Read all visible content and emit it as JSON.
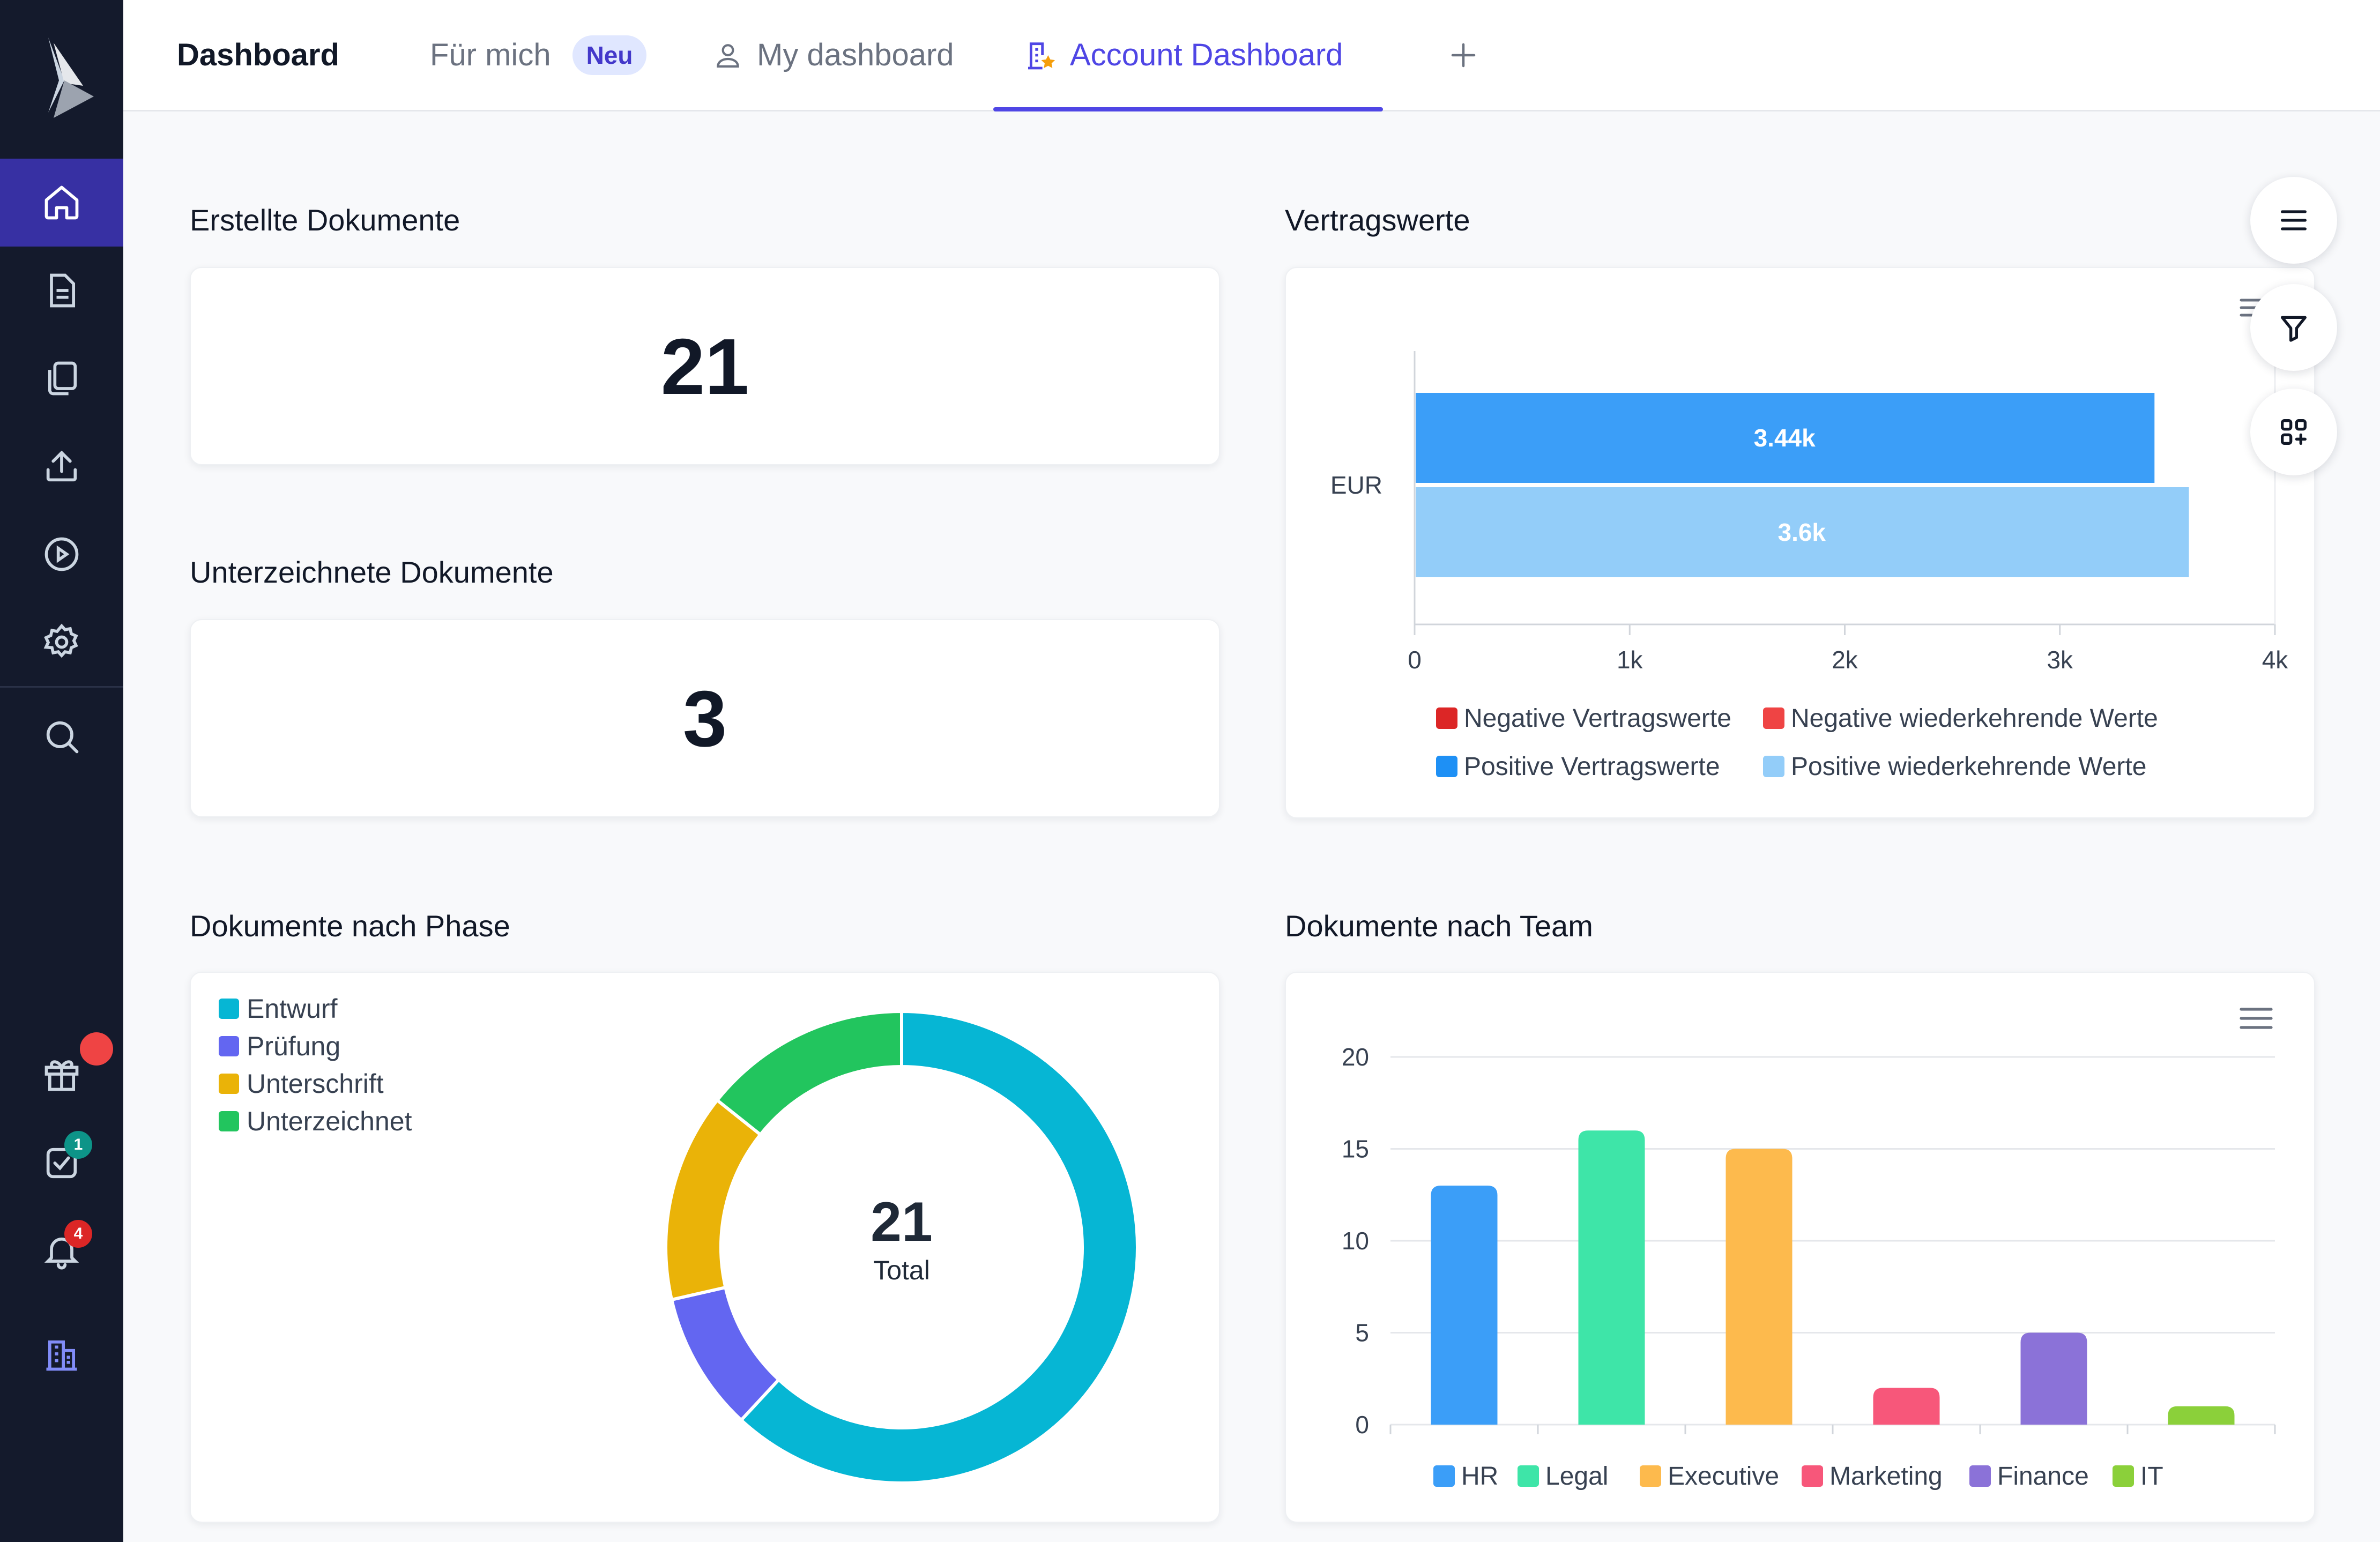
{
  "colors": {
    "accent": "#4f46e5",
    "sidebar_bg": "#141a2c",
    "sidebar_active": "#3730a3"
  },
  "sidebar": {
    "items": [
      {
        "icon": "home-icon",
        "active": true
      },
      {
        "icon": "document-icon"
      },
      {
        "icon": "documents-copy-icon"
      },
      {
        "icon": "upload-icon"
      },
      {
        "icon": "play-icon"
      },
      {
        "icon": "settings-icon"
      },
      {
        "icon": "search-icon"
      }
    ],
    "bottom_items": [
      {
        "icon": "gift-icon",
        "badge": ""
      },
      {
        "icon": "tasks-icon",
        "badge": "1"
      },
      {
        "icon": "bell-icon",
        "badge": "4"
      },
      {
        "icon": "building-icon"
      }
    ]
  },
  "header": {
    "title": "Dashboard",
    "tabs": [
      {
        "label": "Für mich",
        "badge": "Neu"
      },
      {
        "label": "My dashboard",
        "icon": "user-icon"
      },
      {
        "label": "Account Dashboard",
        "icon": "building-star-icon",
        "active": true
      }
    ],
    "add_icon": "plus-icon"
  },
  "widgets": {
    "created": {
      "title": "Erstellte Dokumente",
      "value": "21"
    },
    "signed": {
      "title": "Unterzeichnete Dokumente",
      "value": "3"
    },
    "contract_values": {
      "title": "Vertragswerte"
    },
    "by_phase": {
      "title": "Dokumente nach Phase"
    },
    "by_team": {
      "title": "Dokumente nach Team"
    }
  },
  "chart_data": [
    {
      "type": "bar",
      "orientation": "horizontal",
      "categories": [
        "EUR"
      ],
      "series": [
        {
          "name": "Positive Vertragswerte",
          "values": [
            3440
          ],
          "label": "3.44k",
          "color": "#3b9ef8"
        },
        {
          "name": "Positive wiederkehrende Werte",
          "values": [
            3600
          ],
          "label": "3.6k",
          "color": "#93cdf9"
        }
      ],
      "legend": [
        {
          "name": "Negative Vertragswerte",
          "color": "#dc2626"
        },
        {
          "name": "Negative wiederkehrende Werte",
          "color": "#ef4444"
        },
        {
          "name": "Positive Vertragswerte",
          "color": "#1e90f5"
        },
        {
          "name": "Positive wiederkehrende Werte",
          "color": "#93cdf9"
        }
      ],
      "xlim": [
        0,
        4000
      ],
      "xticks": [
        "0",
        "1k",
        "2k",
        "3k",
        "4k"
      ],
      "legend_position": "bottom"
    },
    {
      "type": "pie",
      "variant": "donut",
      "center_value": "21",
      "center_label": "Total",
      "slices": [
        {
          "name": "Entwurf",
          "value": 13,
          "color": "#06b6d4"
        },
        {
          "name": "Prüfung",
          "value": 2,
          "color": "#6366f1"
        },
        {
          "name": "Unterschrift",
          "value": 3,
          "color": "#eab308"
        },
        {
          "name": "Unterzeichnet",
          "value": 3,
          "color": "#22c55e"
        }
      ],
      "legend_position": "top-left"
    },
    {
      "type": "bar",
      "categories": [
        "HR",
        "Legal",
        "Executive",
        "Marketing",
        "Finance",
        "IT"
      ],
      "values": [
        13,
        16,
        15,
        2,
        5,
        1
      ],
      "colors": [
        "#3b9ef8",
        "#3ee5a8",
        "#fdba4d",
        "#f7577a",
        "#8b72d8",
        "#8bd03a"
      ],
      "ylim": [
        0,
        20
      ],
      "yticks": [
        "0",
        "5",
        "10",
        "15",
        "20"
      ],
      "grid": true,
      "legend_position": "bottom"
    }
  ]
}
